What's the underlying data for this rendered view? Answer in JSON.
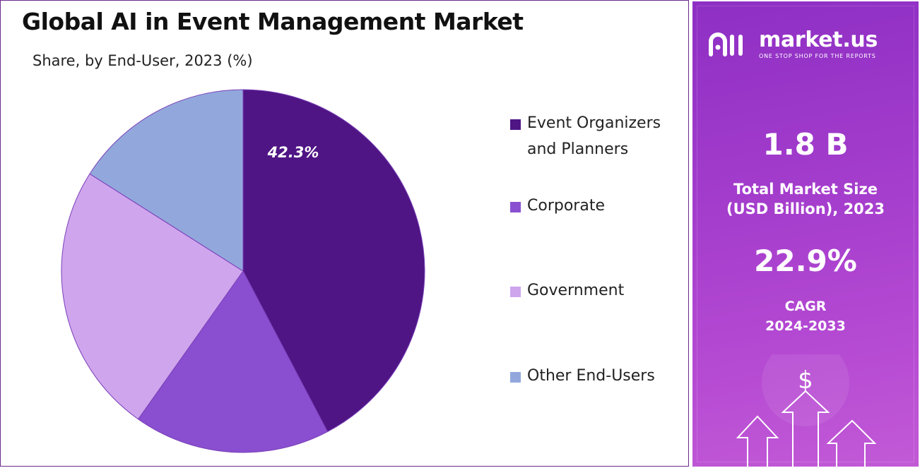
{
  "title": "Global AI in Event Management Market",
  "subtitle": "Share, by End-User, 2023 (%)",
  "chart_data": {
    "type": "pie",
    "categories": [
      "Event Organizers and Planners",
      "Corporate",
      "Government",
      "Other End-Users"
    ],
    "values": [
      42.3,
      17.5,
      24.2,
      16.0
    ],
    "colors": [
      "#4f1585",
      "#8a4fd0",
      "#cfa5ed",
      "#92a8dc"
    ],
    "data_labels": [
      "42.3%",
      "",
      "",
      ""
    ],
    "legend_position": "right"
  },
  "legend": {
    "items": [
      {
        "label": "Event Organizers and Planners",
        "color": "#4f1585"
      },
      {
        "label": "Corporate",
        "color": "#8a4fd0"
      },
      {
        "label": "Government",
        "color": "#cfa5ed"
      },
      {
        "label": "Other End-Users",
        "color": "#92a8dc"
      }
    ]
  },
  "sidebar": {
    "brand": "market.us",
    "tagline": "ONE STOP SHOP FOR THE REPORTS",
    "market_size_value": "1.8 B",
    "market_size_label_1": "Total Market Size",
    "market_size_label_2": "(USD Billion), 2023",
    "cagr_value": "22.9%",
    "cagr_label_1": "CAGR",
    "cagr_label_2": "2024-2033",
    "icons": [
      "logo-icon",
      "dollar-icon",
      "growth-arrows-icon"
    ]
  }
}
